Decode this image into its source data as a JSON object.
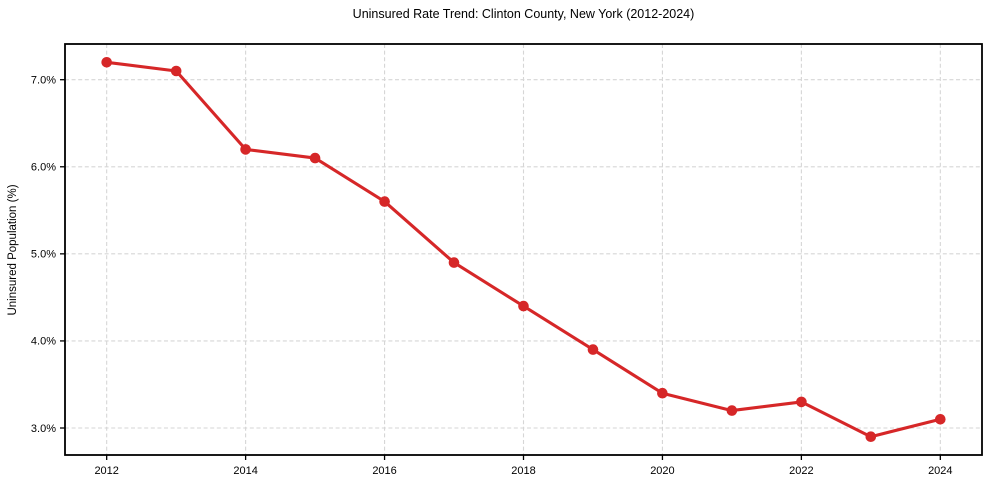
{
  "chart_data": {
    "type": "line",
    "title": "Uninsured Rate Trend: Clinton County, New York (2012-2024)",
    "xlabel": "",
    "ylabel": "Uninsured Population (%)",
    "x": [
      2012,
      2013,
      2014,
      2015,
      2016,
      2017,
      2018,
      2019,
      2020,
      2021,
      2022,
      2023,
      2024
    ],
    "values": [
      7.2,
      7.1,
      6.2,
      6.1,
      5.6,
      4.9,
      4.4,
      3.9,
      3.4,
      3.2,
      3.3,
      2.9,
      3.1
    ],
    "xlim": [
      2011.4,
      2024.6
    ],
    "ylim": [
      2.69,
      7.41
    ],
    "xticks": {
      "values": [
        2012,
        2014,
        2016,
        2018,
        2020,
        2022,
        2024
      ],
      "labels": [
        "2012",
        "2014",
        "2016",
        "2018",
        "2020",
        "2022",
        "2024"
      ]
    },
    "yticks": {
      "values": [
        3.0,
        4.0,
        5.0,
        6.0,
        7.0
      ],
      "labels": [
        "3.0%",
        "4.0%",
        "5.0%",
        "6.0%",
        "7.0%"
      ]
    },
    "grid": true,
    "grid_style": "dashed",
    "legend": false,
    "marker": "circle",
    "colors": {
      "line": "#d62728",
      "marker": "#d62728",
      "grid": "#d6d6d6",
      "axis": "#000000",
      "text": "#000000",
      "background": "#ffffff"
    }
  }
}
